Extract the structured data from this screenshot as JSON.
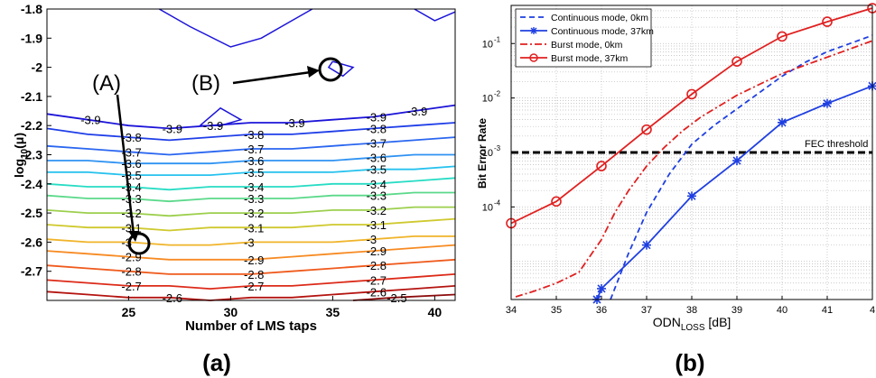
{
  "chart_data": [
    {
      "type": "heatmap",
      "subtype": "contour",
      "caption": "(a)",
      "xlabel": "Number of LMS taps",
      "ylabel_main": "log",
      "ylabel_sub": "10",
      "ylabel_tail": "(μ)",
      "xlim": [
        21,
        41
      ],
      "ylim": [
        -2.8,
        -1.8
      ],
      "x_ticks": [
        "25",
        "30",
        "35",
        "40"
      ],
      "y_ticks": [
        "-1.8",
        "-1.9",
        "-2",
        "-2.1",
        "-2.2",
        "-2.3",
        "-2.4",
        "-2.5",
        "-2.6",
        "-2.7"
      ],
      "annotations": [
        {
          "label": "(A)",
          "x": 25,
          "y": -2.6
        },
        {
          "label": "(B)",
          "x": 35,
          "y": -2.0
        }
      ],
      "contours": [
        {
          "level": -3.9,
          "color": "#1c14d8",
          "labels": [
            "-3.9",
            "-3.9",
            "-3.9",
            "-3.9",
            "-3.9",
            "-3.9"
          ],
          "path": [
            [
              21,
              -2.16
            ],
            [
              23,
              -2.18
            ],
            [
              25,
              -2.2
            ],
            [
              27,
              -2.21
            ],
            [
              29,
              -2.2
            ],
            [
              31,
              -2.19
            ],
            [
              33,
              -2.19
            ],
            [
              35,
              -2.18
            ],
            [
              37,
              -2.17
            ],
            [
              39,
              -2.15
            ],
            [
              41,
              -2.13
            ]
          ]
        },
        {
          "level": -3.8,
          "color": "#1f3ee8",
          "labels": [
            "-3.8",
            "-3.8",
            "-3.8"
          ],
          "path": [
            [
              21,
              -2.21
            ],
            [
              23,
              -2.23
            ],
            [
              25,
              -2.24
            ],
            [
              27,
              -2.25
            ],
            [
              29,
              -2.24
            ],
            [
              31,
              -2.23
            ],
            [
              33,
              -2.23
            ],
            [
              35,
              -2.22
            ],
            [
              37,
              -2.21
            ],
            [
              39,
              -2.2
            ],
            [
              41,
              -2.19
            ]
          ]
        },
        {
          "level": -3.7,
          "color": "#2a66f0",
          "labels": [
            "-3.7",
            "-3.7",
            "-3.7"
          ],
          "path": [
            [
              21,
              -2.27
            ],
            [
              23,
              -2.28
            ],
            [
              25,
              -2.29
            ],
            [
              27,
              -2.3
            ],
            [
              29,
              -2.29
            ],
            [
              31,
              -2.28
            ],
            [
              33,
              -2.28
            ],
            [
              35,
              -2.27
            ],
            [
              37,
              -2.26
            ],
            [
              39,
              -2.25
            ],
            [
              41,
              -2.24
            ]
          ]
        },
        {
          "level": -3.6,
          "color": "#2f93f2",
          "labels": [
            "-3.6",
            "-3.6",
            "-3.6"
          ],
          "path": [
            [
              21,
              -2.32
            ],
            [
              23,
              -2.32
            ],
            [
              25,
              -2.33
            ],
            [
              27,
              -2.33
            ],
            [
              29,
              -2.33
            ],
            [
              31,
              -2.32
            ],
            [
              33,
              -2.32
            ],
            [
              35,
              -2.32
            ],
            [
              37,
              -2.31
            ],
            [
              39,
              -2.3
            ],
            [
              41,
              -2.3
            ]
          ]
        },
        {
          "level": -3.5,
          "color": "#27c2ee",
          "labels": [
            "-3.5",
            "-3.5",
            "-3.5"
          ],
          "path": [
            [
              21,
              -2.36
            ],
            [
              23,
              -2.36
            ],
            [
              25,
              -2.37
            ],
            [
              27,
              -2.37
            ],
            [
              29,
              -2.37
            ],
            [
              31,
              -2.36
            ],
            [
              33,
              -2.36
            ],
            [
              35,
              -2.36
            ],
            [
              37,
              -2.35
            ],
            [
              39,
              -2.35
            ],
            [
              41,
              -2.34
            ]
          ]
        },
        {
          "level": -3.4,
          "color": "#27dcc4",
          "labels": [
            "-3.4",
            "-3.4",
            "-3.4"
          ],
          "path": [
            [
              21,
              -2.4
            ],
            [
              23,
              -2.41
            ],
            [
              25,
              -2.41
            ],
            [
              27,
              -2.42
            ],
            [
              29,
              -2.41
            ],
            [
              31,
              -2.41
            ],
            [
              33,
              -2.41
            ],
            [
              35,
              -2.4
            ],
            [
              37,
              -2.4
            ],
            [
              39,
              -2.39
            ],
            [
              41,
              -2.38
            ]
          ]
        },
        {
          "level": -3.3,
          "color": "#5bd98a",
          "labels": [
            "-3.3",
            "-3.3",
            "-3.3"
          ],
          "path": [
            [
              21,
              -2.44
            ],
            [
              23,
              -2.45
            ],
            [
              25,
              -2.45
            ],
            [
              27,
              -2.46
            ],
            [
              29,
              -2.45
            ],
            [
              31,
              -2.45
            ],
            [
              33,
              -2.45
            ],
            [
              35,
              -2.44
            ],
            [
              37,
              -2.44
            ],
            [
              39,
              -2.43
            ],
            [
              41,
              -2.43
            ]
          ]
        },
        {
          "level": -3.2,
          "color": "#9ccf4c",
          "labels": [
            "-3.2",
            "-3.2",
            "-3.2"
          ],
          "path": [
            [
              21,
              -2.49
            ],
            [
              23,
              -2.5
            ],
            [
              25,
              -2.5
            ],
            [
              27,
              -2.51
            ],
            [
              29,
              -2.5
            ],
            [
              31,
              -2.5
            ],
            [
              33,
              -2.5
            ],
            [
              35,
              -2.49
            ],
            [
              37,
              -2.49
            ],
            [
              39,
              -2.48
            ],
            [
              41,
              -2.48
            ]
          ]
        },
        {
          "level": -3.1,
          "color": "#cfc92e",
          "labels": [
            "-3.1",
            "-3.1",
            "-3.1"
          ],
          "path": [
            [
              21,
              -2.54
            ],
            [
              23,
              -2.55
            ],
            [
              25,
              -2.55
            ],
            [
              27,
              -2.56
            ],
            [
              29,
              -2.55
            ],
            [
              31,
              -2.55
            ],
            [
              33,
              -2.55
            ],
            [
              35,
              -2.54
            ],
            [
              37,
              -2.54
            ],
            [
              39,
              -2.53
            ],
            [
              41,
              -2.52
            ]
          ]
        },
        {
          "level": -3.0,
          "color": "#f0b42a",
          "labels": [
            "-3",
            "-3",
            "-3"
          ],
          "path": [
            [
              21,
              -2.59
            ],
            [
              23,
              -2.6
            ],
            [
              25,
              -2.6
            ],
            [
              27,
              -2.61
            ],
            [
              29,
              -2.61
            ],
            [
              31,
              -2.6
            ],
            [
              33,
              -2.6
            ],
            [
              35,
              -2.6
            ],
            [
              37,
              -2.59
            ],
            [
              39,
              -2.58
            ],
            [
              41,
              -2.58
            ]
          ]
        },
        {
          "level": -2.9,
          "color": "#f78a22",
          "labels": [
            "-2.9",
            "-2.9",
            "-2.9"
          ],
          "path": [
            [
              21,
              -2.63
            ],
            [
              23,
              -2.64
            ],
            [
              25,
              -2.65
            ],
            [
              27,
              -2.66
            ],
            [
              29,
              -2.66
            ],
            [
              31,
              -2.66
            ],
            [
              33,
              -2.65
            ],
            [
              35,
              -2.64
            ],
            [
              37,
              -2.63
            ],
            [
              39,
              -2.62
            ],
            [
              41,
              -2.61
            ]
          ]
        },
        {
          "level": -2.8,
          "color": "#ef5a1c",
          "labels": [
            "-2.8",
            "-2.8",
            "-2.8"
          ],
          "path": [
            [
              21,
              -2.68
            ],
            [
              23,
              -2.69
            ],
            [
              25,
              -2.7
            ],
            [
              27,
              -2.71
            ],
            [
              29,
              -2.71
            ],
            [
              31,
              -2.71
            ],
            [
              33,
              -2.7
            ],
            [
              35,
              -2.69
            ],
            [
              37,
              -2.68
            ],
            [
              39,
              -2.67
            ],
            [
              41,
              -2.66
            ]
          ]
        },
        {
          "level": -2.7,
          "color": "#dc2a18",
          "labels": [
            "-2.7",
            "-2.7",
            "-2.7"
          ],
          "path": [
            [
              21,
              -2.73
            ],
            [
              23,
              -2.74
            ],
            [
              25,
              -2.75
            ],
            [
              27,
              -2.75
            ],
            [
              29,
              -2.76
            ],
            [
              31,
              -2.75
            ],
            [
              33,
              -2.75
            ],
            [
              35,
              -2.74
            ],
            [
              37,
              -2.73
            ],
            [
              39,
              -2.72
            ],
            [
              41,
              -2.71
            ]
          ]
        },
        {
          "level": -2.6,
          "color": "#b41410",
          "labels": [
            "-2.6",
            "-2.6"
          ],
          "path": [
            [
              21,
              -2.77
            ],
            [
              23,
              -2.78
            ],
            [
              25,
              -2.79
            ],
            [
              27,
              -2.79
            ],
            [
              29,
              -2.8
            ],
            [
              31,
              -2.79
            ],
            [
              33,
              -2.79
            ],
            [
              35,
              -2.78
            ],
            [
              37,
              -2.77
            ],
            [
              39,
              -2.76
            ],
            [
              41,
              -2.75
            ]
          ]
        },
        {
          "level": -2.5,
          "color": "#8c0c0c",
          "labels": [
            "-2.5"
          ],
          "path": [
            [
              36,
              -2.8
            ],
            [
              38,
              -2.79
            ],
            [
              41,
              -2.78
            ]
          ]
        }
      ]
    },
    {
      "type": "line",
      "caption": "(b)",
      "xlabel_main": "ODN",
      "xlabel_sub": "LOSS",
      "xlabel_tail": " [dB]",
      "ylabel": "Bit Error Rate",
      "xlim": [
        34,
        42
      ],
      "ylim_log10": [
        -5.7,
        -0.3
      ],
      "log_y": true,
      "grid": true,
      "legend_position": "top-left",
      "x_ticks": [
        "34",
        "35",
        "36",
        "37",
        "38",
        "39",
        "40",
        "41",
        "4"
      ],
      "y_ticks": [
        {
          "base": "10",
          "exp": "-1",
          "value": -1
        },
        {
          "base": "10",
          "exp": "-2",
          "value": -2
        },
        {
          "base": "10",
          "exp": "-3",
          "value": -3
        },
        {
          "base": "10",
          "exp": "-4",
          "value": -4
        }
      ],
      "threshold": {
        "label": "FEC threshold",
        "log10_y": -3
      },
      "series": [
        {
          "name": "Continuous mode, 0km",
          "color": "#1f3fe0",
          "dash": "6,4",
          "marker": "none",
          "x": [
            36.2,
            36.6,
            37.0,
            37.5,
            38.0,
            38.5,
            39.0,
            39.5,
            40.0,
            40.5,
            41.0,
            41.5,
            42.0
          ],
          "log10_y": [
            -5.7,
            -4.85,
            -4.1,
            -3.4,
            -2.85,
            -2.5,
            -2.2,
            -1.9,
            -1.6,
            -1.35,
            -1.15,
            -1.0,
            -0.85
          ]
        },
        {
          "name": "Continuous mode, 37km",
          "color": "#1f3fe0",
          "dash": "",
          "marker": "star",
          "x": [
            35.9,
            36,
            37,
            38,
            39,
            40,
            41,
            42
          ],
          "log10_y": [
            -5.7,
            -5.5,
            -4.7,
            -3.8,
            -3.15,
            -2.45,
            -2.1,
            -1.78
          ]
        },
        {
          "name": "Burst mode, 0km",
          "color": "#e02020",
          "dash": "8,3,2,3",
          "marker": "none",
          "x": [
            34.1,
            34.5,
            35.0,
            35.5,
            36.0,
            36.3,
            36.6,
            37.0,
            37.4,
            37.8,
            38.2,
            38.6,
            39.0,
            39.5,
            40.0,
            40.5,
            41.0,
            41.5,
            42.0
          ],
          "log10_y": [
            -5.65,
            -5.55,
            -5.4,
            -5.2,
            -4.6,
            -4.1,
            -3.7,
            -3.25,
            -2.9,
            -2.6,
            -2.35,
            -2.15,
            -1.95,
            -1.75,
            -1.55,
            -1.4,
            -1.25,
            -1.1,
            -0.95
          ]
        },
        {
          "name": "Burst mode, 37km",
          "color": "#e02020",
          "dash": "",
          "marker": "circle",
          "x": [
            34,
            35,
            36,
            37,
            38,
            39,
            40,
            41,
            42
          ],
          "log10_y": [
            -4.3,
            -3.9,
            -3.25,
            -2.58,
            -1.93,
            -1.33,
            -0.87,
            -0.6,
            -0.35
          ]
        }
      ]
    }
  ],
  "annotations": {
    "label_a": "(A)",
    "label_b": "(B)"
  },
  "captions": {
    "left": "(a)",
    "right": "(b)"
  }
}
